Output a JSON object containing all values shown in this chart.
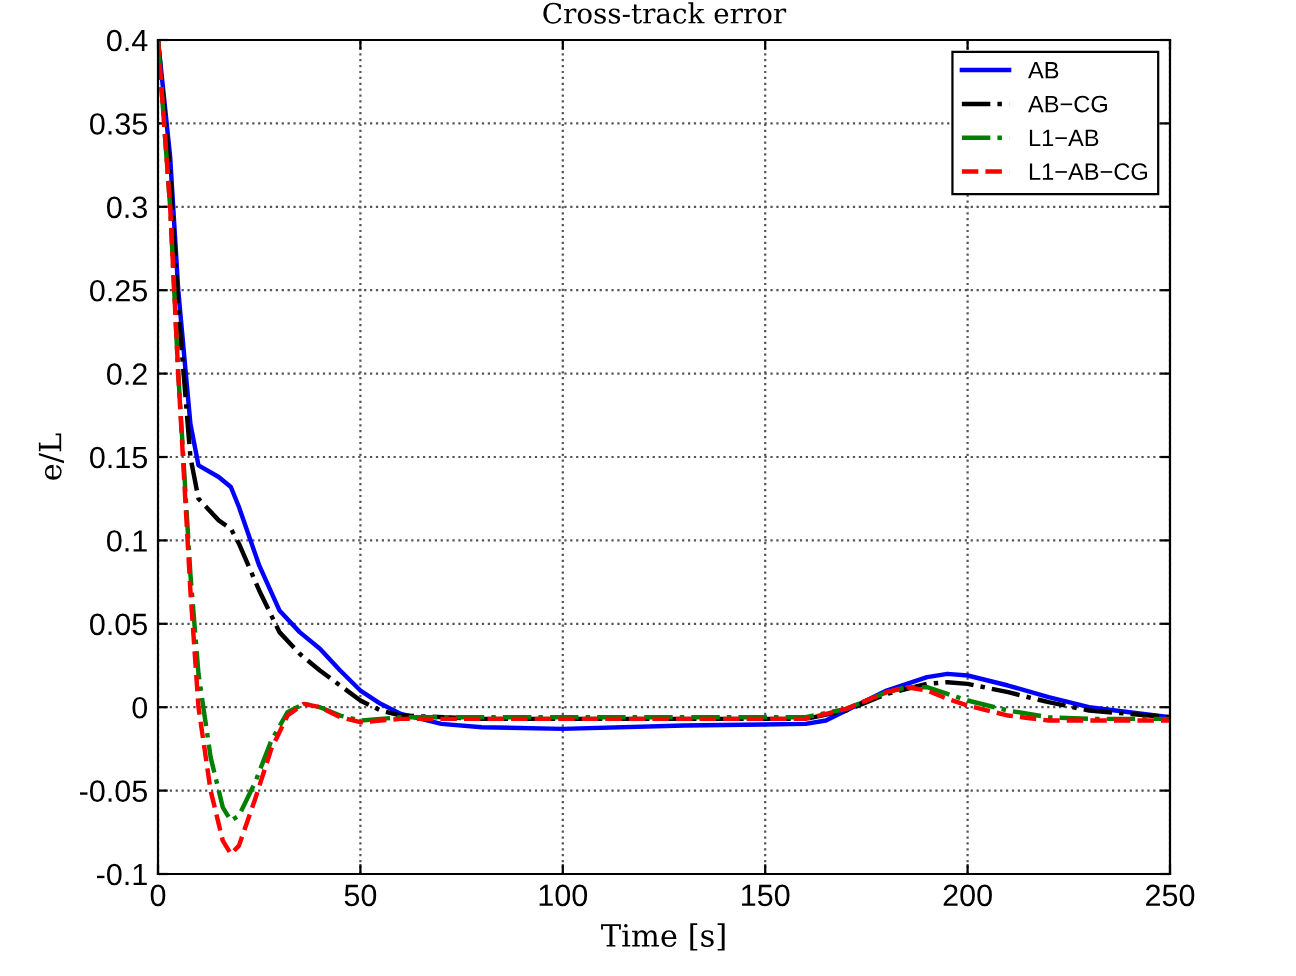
{
  "chart_data": {
    "type": "line",
    "title": "Cross-track error",
    "xlabel": "Time [s]",
    "ylabel": "e/L",
    "xlim": [
      0,
      250
    ],
    "xticks": [
      0,
      50,
      100,
      150,
      200,
      250
    ],
    "ylim": [
      -0.1,
      0.4
    ],
    "yticks": [
      -0.1,
      -0.05,
      0,
      0.05,
      0.1,
      0.15,
      0.2,
      0.25,
      0.3,
      0.35,
      0.4
    ],
    "grid": true,
    "legend": "top right",
    "series": [
      {
        "name": "AB",
        "color": "#0000ff",
        "line_style": "solid",
        "x": [
          0,
          3,
          5,
          8,
          10,
          15,
          18,
          20,
          25,
          30,
          35,
          40,
          45,
          50,
          55,
          60,
          70,
          80,
          100,
          130,
          160,
          165,
          170,
          180,
          190,
          195,
          200,
          210,
          220,
          230,
          240,
          250
        ],
        "values": [
          0.4,
          0.33,
          0.25,
          0.17,
          0.145,
          0.138,
          0.132,
          0.12,
          0.085,
          0.058,
          0.045,
          0.035,
          0.022,
          0.01,
          0.002,
          -0.004,
          -0.01,
          -0.012,
          -0.013,
          -0.011,
          -0.01,
          -0.008,
          -0.002,
          0.01,
          0.018,
          0.02,
          0.019,
          0.013,
          0.006,
          0.0,
          -0.003,
          -0.006
        ]
      },
      {
        "name": "AB−CG",
        "color": "#000000",
        "line_style": "dashdot",
        "x": [
          0,
          3,
          5,
          8,
          10,
          15,
          18,
          20,
          25,
          30,
          35,
          40,
          45,
          50,
          55,
          60,
          80,
          130,
          160,
          170,
          180,
          190,
          195,
          200,
          210,
          220,
          230,
          240,
          250
        ],
        "values": [
          0.4,
          0.32,
          0.24,
          0.15,
          0.125,
          0.112,
          0.107,
          0.098,
          0.07,
          0.045,
          0.032,
          0.022,
          0.013,
          0.004,
          -0.002,
          -0.005,
          -0.007,
          -0.007,
          -0.007,
          -0.002,
          0.008,
          0.014,
          0.015,
          0.014,
          0.009,
          0.003,
          -0.002,
          -0.004,
          -0.006
        ]
      },
      {
        "name": "L1−AB",
        "color": "#008000",
        "line_style": "dashdot",
        "x": [
          0,
          3,
          5,
          8,
          10,
          13,
          16,
          18,
          20,
          24,
          28,
          32,
          36,
          40,
          45,
          50,
          55,
          60,
          100,
          160,
          170,
          180,
          185,
          190,
          195,
          200,
          210,
          220,
          230,
          250
        ],
        "values": [
          0.4,
          0.3,
          0.2,
          0.08,
          0.02,
          -0.03,
          -0.06,
          -0.068,
          -0.065,
          -0.045,
          -0.02,
          -0.003,
          0.002,
          0.0,
          -0.005,
          -0.008,
          -0.007,
          -0.006,
          -0.006,
          -0.006,
          -0.001,
          0.009,
          0.012,
          0.012,
          0.008,
          0.004,
          -0.002,
          -0.006,
          -0.007,
          -0.007
        ]
      },
      {
        "name": "L1−AB−CG",
        "color": "#ff0000",
        "line_style": "dashed",
        "x": [
          0,
          3,
          5,
          8,
          10,
          13,
          16,
          18,
          20,
          24,
          28,
          32,
          36,
          40,
          45,
          50,
          55,
          60,
          100,
          160,
          170,
          180,
          185,
          190,
          195,
          200,
          210,
          220,
          230,
          250
        ],
        "values": [
          0.4,
          0.3,
          0.2,
          0.07,
          0.0,
          -0.05,
          -0.08,
          -0.088,
          -0.083,
          -0.055,
          -0.025,
          -0.005,
          0.002,
          0.0,
          -0.006,
          -0.009,
          -0.008,
          -0.007,
          -0.007,
          -0.007,
          -0.001,
          0.009,
          0.012,
          0.01,
          0.005,
          0.001,
          -0.005,
          -0.008,
          -0.008,
          -0.008
        ]
      }
    ]
  }
}
